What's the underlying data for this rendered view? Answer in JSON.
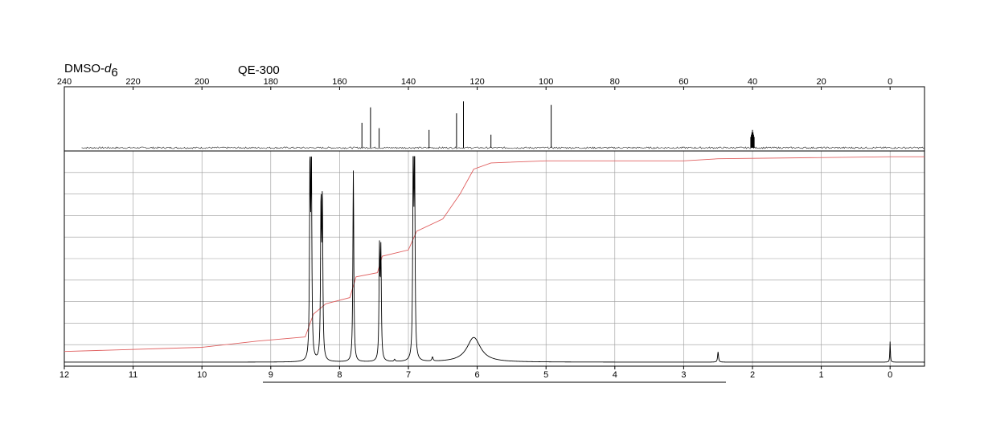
{
  "header": {
    "solvent": "DMSO-",
    "solvent_suffix": "d",
    "solvent_subscript": "6",
    "instrument": "QE-300"
  },
  "chart_data": [
    {
      "type": "line",
      "name": "13C spectrum",
      "x_ticks": [
        240,
        220,
        200,
        180,
        160,
        140,
        120,
        100,
        80,
        60,
        40,
        20,
        0
      ],
      "xlim": [
        240,
        -10
      ],
      "x_reversed": true,
      "peaks": [
        {
          "x": 153.5,
          "y": 0.42
        },
        {
          "x": 151.0,
          "y": 0.68
        },
        {
          "x": 148.5,
          "y": 0.33
        },
        {
          "x": 134.0,
          "y": 0.3
        },
        {
          "x": 126.0,
          "y": 0.58
        },
        {
          "x": 124.0,
          "y": 0.78
        },
        {
          "x": 116.0,
          "y": 0.22
        },
        {
          "x": 98.5,
          "y": 0.72
        },
        {
          "x": 40.0,
          "y": 0.3
        }
      ],
      "line_color": "#000000"
    },
    {
      "type": "line",
      "name": "1H spectrum",
      "x_ticks": [
        12,
        11,
        10,
        9,
        8,
        7,
        6,
        5,
        4,
        3,
        2,
        1,
        0
      ],
      "xlim": [
        12,
        -0.5
      ],
      "x_reversed": true,
      "grid": true,
      "peaks": [
        {
          "x": 8.43,
          "y": 0.92,
          "w": 0.008
        },
        {
          "x": 8.41,
          "y": 0.94,
          "w": 0.008
        },
        {
          "x": 8.27,
          "y": 0.73,
          "w": 0.008
        },
        {
          "x": 8.25,
          "y": 0.75,
          "w": 0.008
        },
        {
          "x": 7.8,
          "y": 0.93,
          "w": 0.008
        },
        {
          "x": 7.42,
          "y": 0.52,
          "w": 0.008
        },
        {
          "x": 7.4,
          "y": 0.51,
          "w": 0.008
        },
        {
          "x": 6.93,
          "y": 0.97,
          "w": 0.008
        },
        {
          "x": 6.91,
          "y": 0.96,
          "w": 0.008
        },
        {
          "x": 6.05,
          "y": 0.12,
          "w": 0.12
        },
        {
          "x": 6.65,
          "y": 0.02,
          "w": 0.01
        },
        {
          "x": 7.2,
          "y": 0.01,
          "w": 0.01
        },
        {
          "x": 2.5,
          "y": 0.05,
          "w": 0.008
        },
        {
          "x": 0.0,
          "y": 0.1,
          "w": 0.005
        }
      ],
      "integral": [
        [
          12,
          0.04
        ],
        [
          10,
          0.06
        ],
        [
          9.2,
          0.09
        ],
        [
          8.5,
          0.11
        ],
        [
          8.38,
          0.22
        ],
        [
          8.2,
          0.27
        ],
        [
          7.85,
          0.3
        ],
        [
          7.76,
          0.4
        ],
        [
          7.45,
          0.42
        ],
        [
          7.38,
          0.5
        ],
        [
          7.0,
          0.53
        ],
        [
          6.88,
          0.62
        ],
        [
          6.5,
          0.68
        ],
        [
          6.25,
          0.8
        ],
        [
          6.05,
          0.92
        ],
        [
          5.8,
          0.95
        ],
        [
          5.0,
          0.96
        ],
        [
          3.0,
          0.96
        ],
        [
          2.5,
          0.97
        ],
        [
          0,
          0.98
        ],
        [
          -0.5,
          0.98
        ]
      ],
      "integral_color": "#e06060",
      "line_color": "#000000"
    }
  ]
}
